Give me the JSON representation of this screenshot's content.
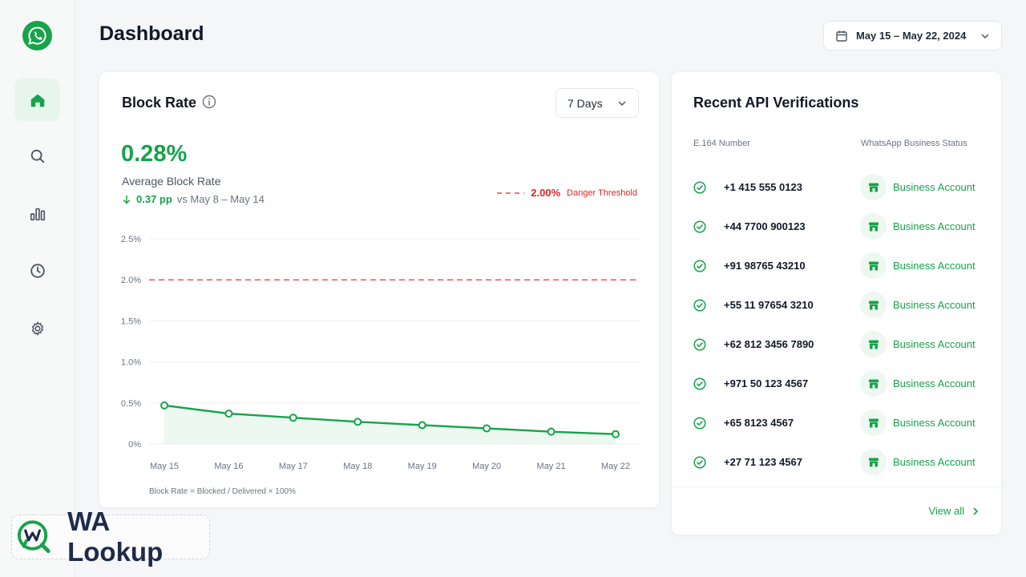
{
  "header": {
    "title": "Dashboard",
    "date_range": "May 15 – May 22, 2024"
  },
  "sidebar": {
    "items": [
      {
        "name": "home",
        "active": true
      },
      {
        "name": "search",
        "active": false
      },
      {
        "name": "analytics",
        "active": false
      },
      {
        "name": "history",
        "active": false
      },
      {
        "name": "settings",
        "active": false
      }
    ]
  },
  "block_rate": {
    "title": "Block Rate",
    "range": "7 Days",
    "value": "0.28%",
    "subtitle": "Average Block Rate",
    "change": "0.37 pp",
    "comparison": "vs May 8 – May 14",
    "danger_value": "2.00%",
    "danger_label": "Danger Threshold",
    "formula": "Block Rate = Blocked / Delivered × 100%"
  },
  "chart_data": {
    "type": "area",
    "categories": [
      "May 15",
      "May 16",
      "May 17",
      "May 18",
      "May 19",
      "May 20",
      "May 21",
      "May 22"
    ],
    "series": [
      {
        "values": [
          0.47,
          0.37,
          0.32,
          0.27,
          0.23,
          0.19,
          0.15,
          0.12
        ]
      }
    ],
    "threshold": 2.0,
    "ylim": [
      0,
      2.5
    ],
    "yticks": [
      "0%",
      "0.5%",
      "1.0%",
      "1.5%",
      "2.0%",
      "2.5%"
    ],
    "grid": true,
    "colors": {
      "line": "#16a34a",
      "threshold": "#ef4444"
    }
  },
  "recent": {
    "title": "Recent API Verifications",
    "col_number": "E.164 Number",
    "col_status": "WhatsApp Business Status",
    "rows": [
      {
        "number": "+1 415 555 0123",
        "status": "Business Account"
      },
      {
        "number": "+44 7700 900123",
        "status": "Business Account"
      },
      {
        "number": "+91 98765 43210",
        "status": "Business Account"
      },
      {
        "number": "+55 11 97654 3210",
        "status": "Business Account"
      },
      {
        "number": "+62 812 3456 7890",
        "status": "Business Account"
      },
      {
        "number": "+971 50 123 4567",
        "status": "Business Account"
      },
      {
        "number": "+65 8123 4567",
        "status": "Business Account"
      },
      {
        "number": "+27 71 123 4567",
        "status": "Business Account"
      }
    ],
    "view_all": "View all"
  },
  "brand": {
    "name": "WA Lookup",
    "accent": "#16a34a"
  }
}
